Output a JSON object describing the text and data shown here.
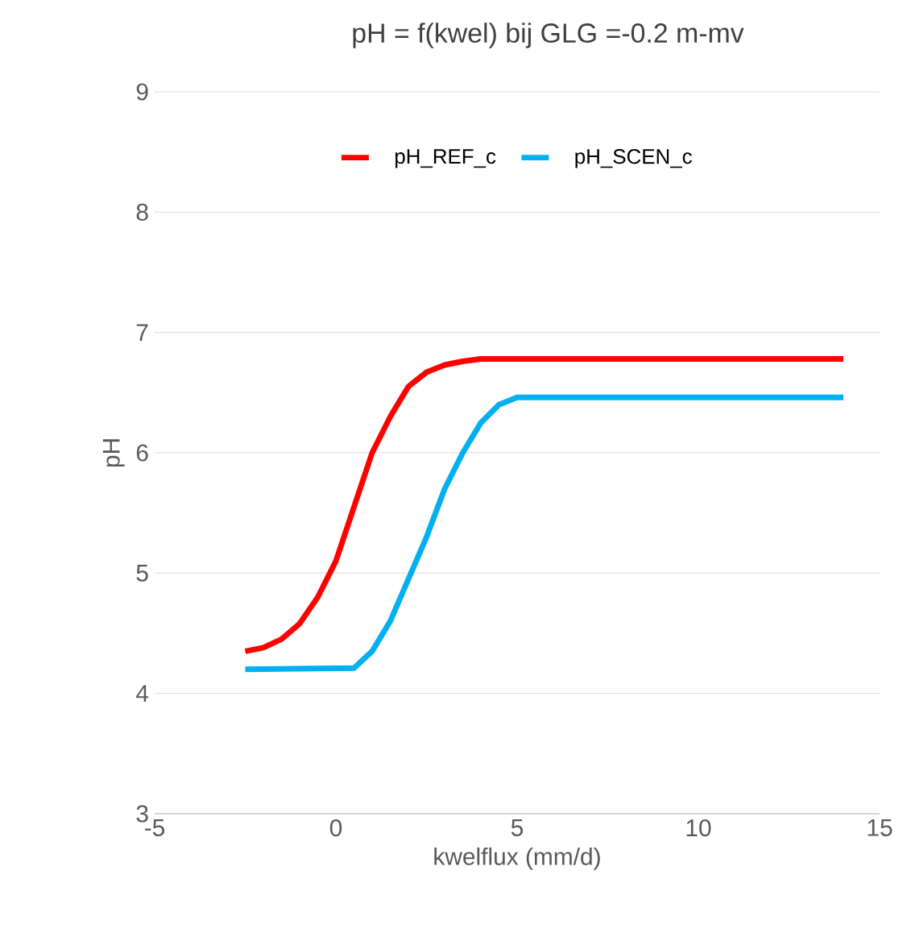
{
  "chart_data": {
    "type": "line",
    "title": "pH = f(kwel) bij GLG =-0.2 m-mv",
    "xlabel": "kwelflux (mm/d)",
    "ylabel": "pH",
    "xlim": [
      -5,
      15
    ],
    "xticks": [
      -5,
      0,
      5,
      10,
      15
    ],
    "ylim": [
      3,
      9
    ],
    "yticks": [
      3,
      4,
      5,
      6,
      7,
      8,
      9
    ],
    "grid": "y",
    "legend": "top",
    "marker": "none",
    "line_style": "solid",
    "series": [
      {
        "name": "pH_REF_c",
        "color": "#ff0000",
        "x": [
          -2.5,
          -2,
          -1.5,
          -1,
          -0.5,
          0,
          0.5,
          1,
          1.5,
          2,
          2.5,
          3,
          3.5,
          4,
          14
        ],
        "values": [
          4.35,
          4.38,
          4.45,
          4.58,
          4.8,
          5.1,
          5.55,
          6.0,
          6.3,
          6.55,
          6.67,
          6.73,
          6.76,
          6.78,
          6.78
        ]
      },
      {
        "name": "pH_SCEN_c",
        "color": "#00b0f0",
        "x": [
          -2.5,
          0.5,
          1,
          1.5,
          2,
          2.5,
          3,
          3.5,
          4,
          4.5,
          5,
          14
        ],
        "values": [
          4.2,
          4.21,
          4.35,
          4.6,
          4.95,
          5.3,
          5.7,
          6.0,
          6.25,
          6.4,
          6.46,
          6.46
        ]
      }
    ]
  }
}
